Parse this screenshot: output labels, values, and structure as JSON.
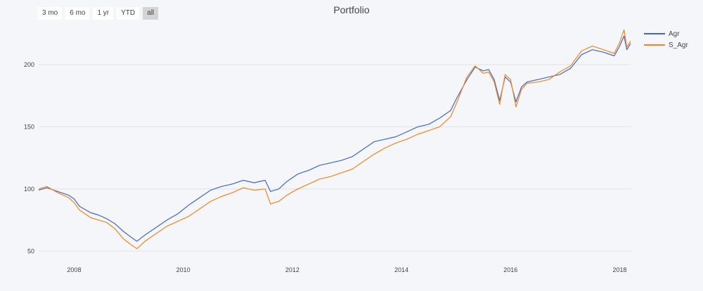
{
  "title": "Portfolio",
  "range_buttons": [
    {
      "label": "3 mo",
      "active": false
    },
    {
      "label": "6 mo",
      "active": false
    },
    {
      "label": "1 yr",
      "active": false
    },
    {
      "label": "YTD",
      "active": false
    },
    {
      "label": "all",
      "active": true
    }
  ],
  "legend": [
    {
      "label": "Agr",
      "color": "#4466cc"
    },
    {
      "label": "S_Agr",
      "color": "#f5851f"
    }
  ],
  "chart_data": {
    "type": "line",
    "title": "Portfolio",
    "xlabel": "",
    "ylabel": "",
    "xlim": [
      2007.35,
      2018.2
    ],
    "ylim": [
      40,
      235
    ],
    "x_ticks": [
      2008,
      2010,
      2012,
      2014,
      2016,
      2018
    ],
    "y_ticks": [
      50,
      100,
      150,
      200
    ],
    "grid": true,
    "legend_position": "top-right",
    "series": [
      {
        "name": "Agr",
        "color": "#4466cc",
        "x": [
          2007.35,
          2007.5,
          2007.7,
          2007.9,
          2008.0,
          2008.1,
          2008.3,
          2008.45,
          2008.6,
          2008.75,
          2008.9,
          2009.05,
          2009.15,
          2009.3,
          2009.5,
          2009.7,
          2009.9,
          2010.1,
          2010.3,
          2010.5,
          2010.7,
          2010.9,
          2011.1,
          2011.3,
          2011.5,
          2011.6,
          2011.75,
          2011.9,
          2012.1,
          2012.3,
          2012.5,
          2012.7,
          2012.9,
          2013.1,
          2013.3,
          2013.5,
          2013.7,
          2013.9,
          2014.1,
          2014.3,
          2014.5,
          2014.7,
          2014.9,
          2015.0,
          2015.2,
          2015.35,
          2015.5,
          2015.6,
          2015.7,
          2015.8,
          2015.9,
          2016.0,
          2016.1,
          2016.2,
          2016.3,
          2016.5,
          2016.7,
          2016.9,
          2017.1,
          2017.3,
          2017.5,
          2017.7,
          2017.9,
          2018.0,
          2018.08,
          2018.13,
          2018.2
        ],
        "values": [
          99,
          101,
          98,
          95,
          92,
          86,
          81,
          79,
          76,
          72,
          66,
          61,
          58,
          63,
          69,
          75,
          80,
          87,
          93,
          99,
          102,
          104,
          107,
          105,
          107,
          98,
          100,
          106,
          112,
          115,
          119,
          121,
          123,
          126,
          132,
          138,
          140,
          142,
          146,
          150,
          152,
          157,
          163,
          172,
          188,
          198,
          195,
          196,
          188,
          171,
          190,
          186,
          170,
          182,
          186,
          188,
          190,
          192,
          197,
          208,
          212,
          210,
          207,
          215,
          223,
          212,
          217
        ]
      },
      {
        "name": "S_Agr",
        "color": "#f5851f",
        "x": [
          2007.35,
          2007.5,
          2007.7,
          2007.9,
          2008.0,
          2008.1,
          2008.3,
          2008.45,
          2008.6,
          2008.75,
          2008.9,
          2009.05,
          2009.15,
          2009.3,
          2009.5,
          2009.7,
          2009.9,
          2010.1,
          2010.3,
          2010.5,
          2010.7,
          2010.9,
          2011.1,
          2011.3,
          2011.5,
          2011.6,
          2011.75,
          2011.9,
          2012.1,
          2012.3,
          2012.5,
          2012.7,
          2012.9,
          2013.1,
          2013.3,
          2013.5,
          2013.7,
          2013.9,
          2014.1,
          2014.3,
          2014.5,
          2014.7,
          2014.9,
          2015.0,
          2015.2,
          2015.35,
          2015.5,
          2015.6,
          2015.7,
          2015.8,
          2015.9,
          2016.0,
          2016.1,
          2016.2,
          2016.3,
          2016.5,
          2016.7,
          2016.9,
          2017.1,
          2017.3,
          2017.5,
          2017.7,
          2017.9,
          2018.0,
          2018.08,
          2018.13,
          2018.2
        ],
        "values": [
          100,
          102,
          97,
          93,
          89,
          83,
          77,
          75,
          73,
          68,
          60,
          55,
          52,
          58,
          64,
          70,
          74,
          78,
          84,
          90,
          94,
          97,
          101,
          99,
          100,
          88,
          90,
          95,
          100,
          104,
          108,
          110,
          113,
          116,
          122,
          128,
          133,
          137,
          140,
          144,
          147,
          150,
          158,
          168,
          190,
          199,
          193,
          194,
          186,
          168,
          192,
          188,
          166,
          180,
          185,
          186,
          188,
          194,
          199,
          211,
          215,
          212,
          209,
          218,
          228,
          214,
          219
        ]
      }
    ]
  }
}
